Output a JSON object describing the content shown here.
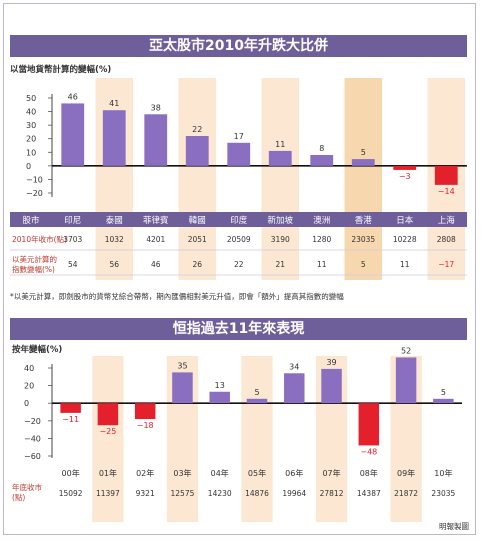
{
  "chart_data": [
    {
      "type": "bar",
      "title": "亞太股市2010年升跌大比併",
      "ylabel": "以當地貨幣計算的變幅(%)",
      "ylim": [
        -20,
        50
      ],
      "yticks": [
        50,
        40,
        30,
        20,
        10,
        0,
        -10,
        -20
      ],
      "categories": [
        "印尼",
        "泰國",
        "菲律賓",
        "韓國",
        "印度",
        "新加坡",
        "澳洲",
        "香港",
        "日本",
        "上海"
      ],
      "values": [
        46,
        41,
        38,
        22,
        17,
        11,
        8,
        5,
        -3,
        -14
      ],
      "value_labels": [
        "46",
        "41",
        "38",
        "22",
        "17",
        "11",
        "8",
        "5",
        "−3",
        "−14"
      ],
      "highlight_index": 7,
      "table": {
        "header_label": "股市",
        "rows": [
          {
            "label": "2010年收市(點)",
            "values": [
              "3703",
              "1032",
              "4201",
              "2051",
              "20509",
              "3190",
              "1280",
              "23035",
              "10228",
              "2808"
            ]
          },
          {
            "label": "以美元計算的\n指數變幅(%)",
            "values": [
              "54",
              "56",
              "46",
              "26",
              "22",
              "21",
              "11",
              "5",
              "11",
              "−17"
            ]
          }
        ]
      },
      "footnote": "*以美元計算，即劍股市的貨幣兌綜合帶幣，期內匯價相對美元升值，即會「額外」提高其指數的變幅"
    },
    {
      "type": "bar",
      "title": "恒指過去11年來表現",
      "ylabel": "按年變幅(%)",
      "ylim": [
        -60,
        40
      ],
      "yticks": [
        40,
        20,
        0,
        -20,
        -40,
        -60
      ],
      "categories": [
        "00年",
        "01年",
        "02年",
        "03年",
        "04年",
        "05年",
        "06年",
        "07年",
        "08年",
        "09年",
        "10年"
      ],
      "values": [
        -11,
        -25,
        -18,
        35,
        13,
        5,
        34,
        39,
        -48,
        52,
        5
      ],
      "value_labels": [
        "−11",
        "−25",
        "−18",
        "35",
        "13",
        "5",
        "34",
        "39",
        "−48",
        "52",
        "5"
      ],
      "table": {
        "rows": [
          {
            "label": "年底收市\n(點)",
            "values": [
              "15092",
              "11397",
              "9321",
              "12575",
              "14230",
              "14876",
              "19964",
              "27812",
              "14387",
              "21872",
              "23035"
            ]
          }
        ]
      }
    }
  ],
  "source": "明報製圖",
  "colors": {
    "banner": "#6e5f9a",
    "positive": "#8a6fc0",
    "negative": "#e4202c",
    "stripe": "#fbe7d2",
    "highlight": "#f7d8ae"
  }
}
